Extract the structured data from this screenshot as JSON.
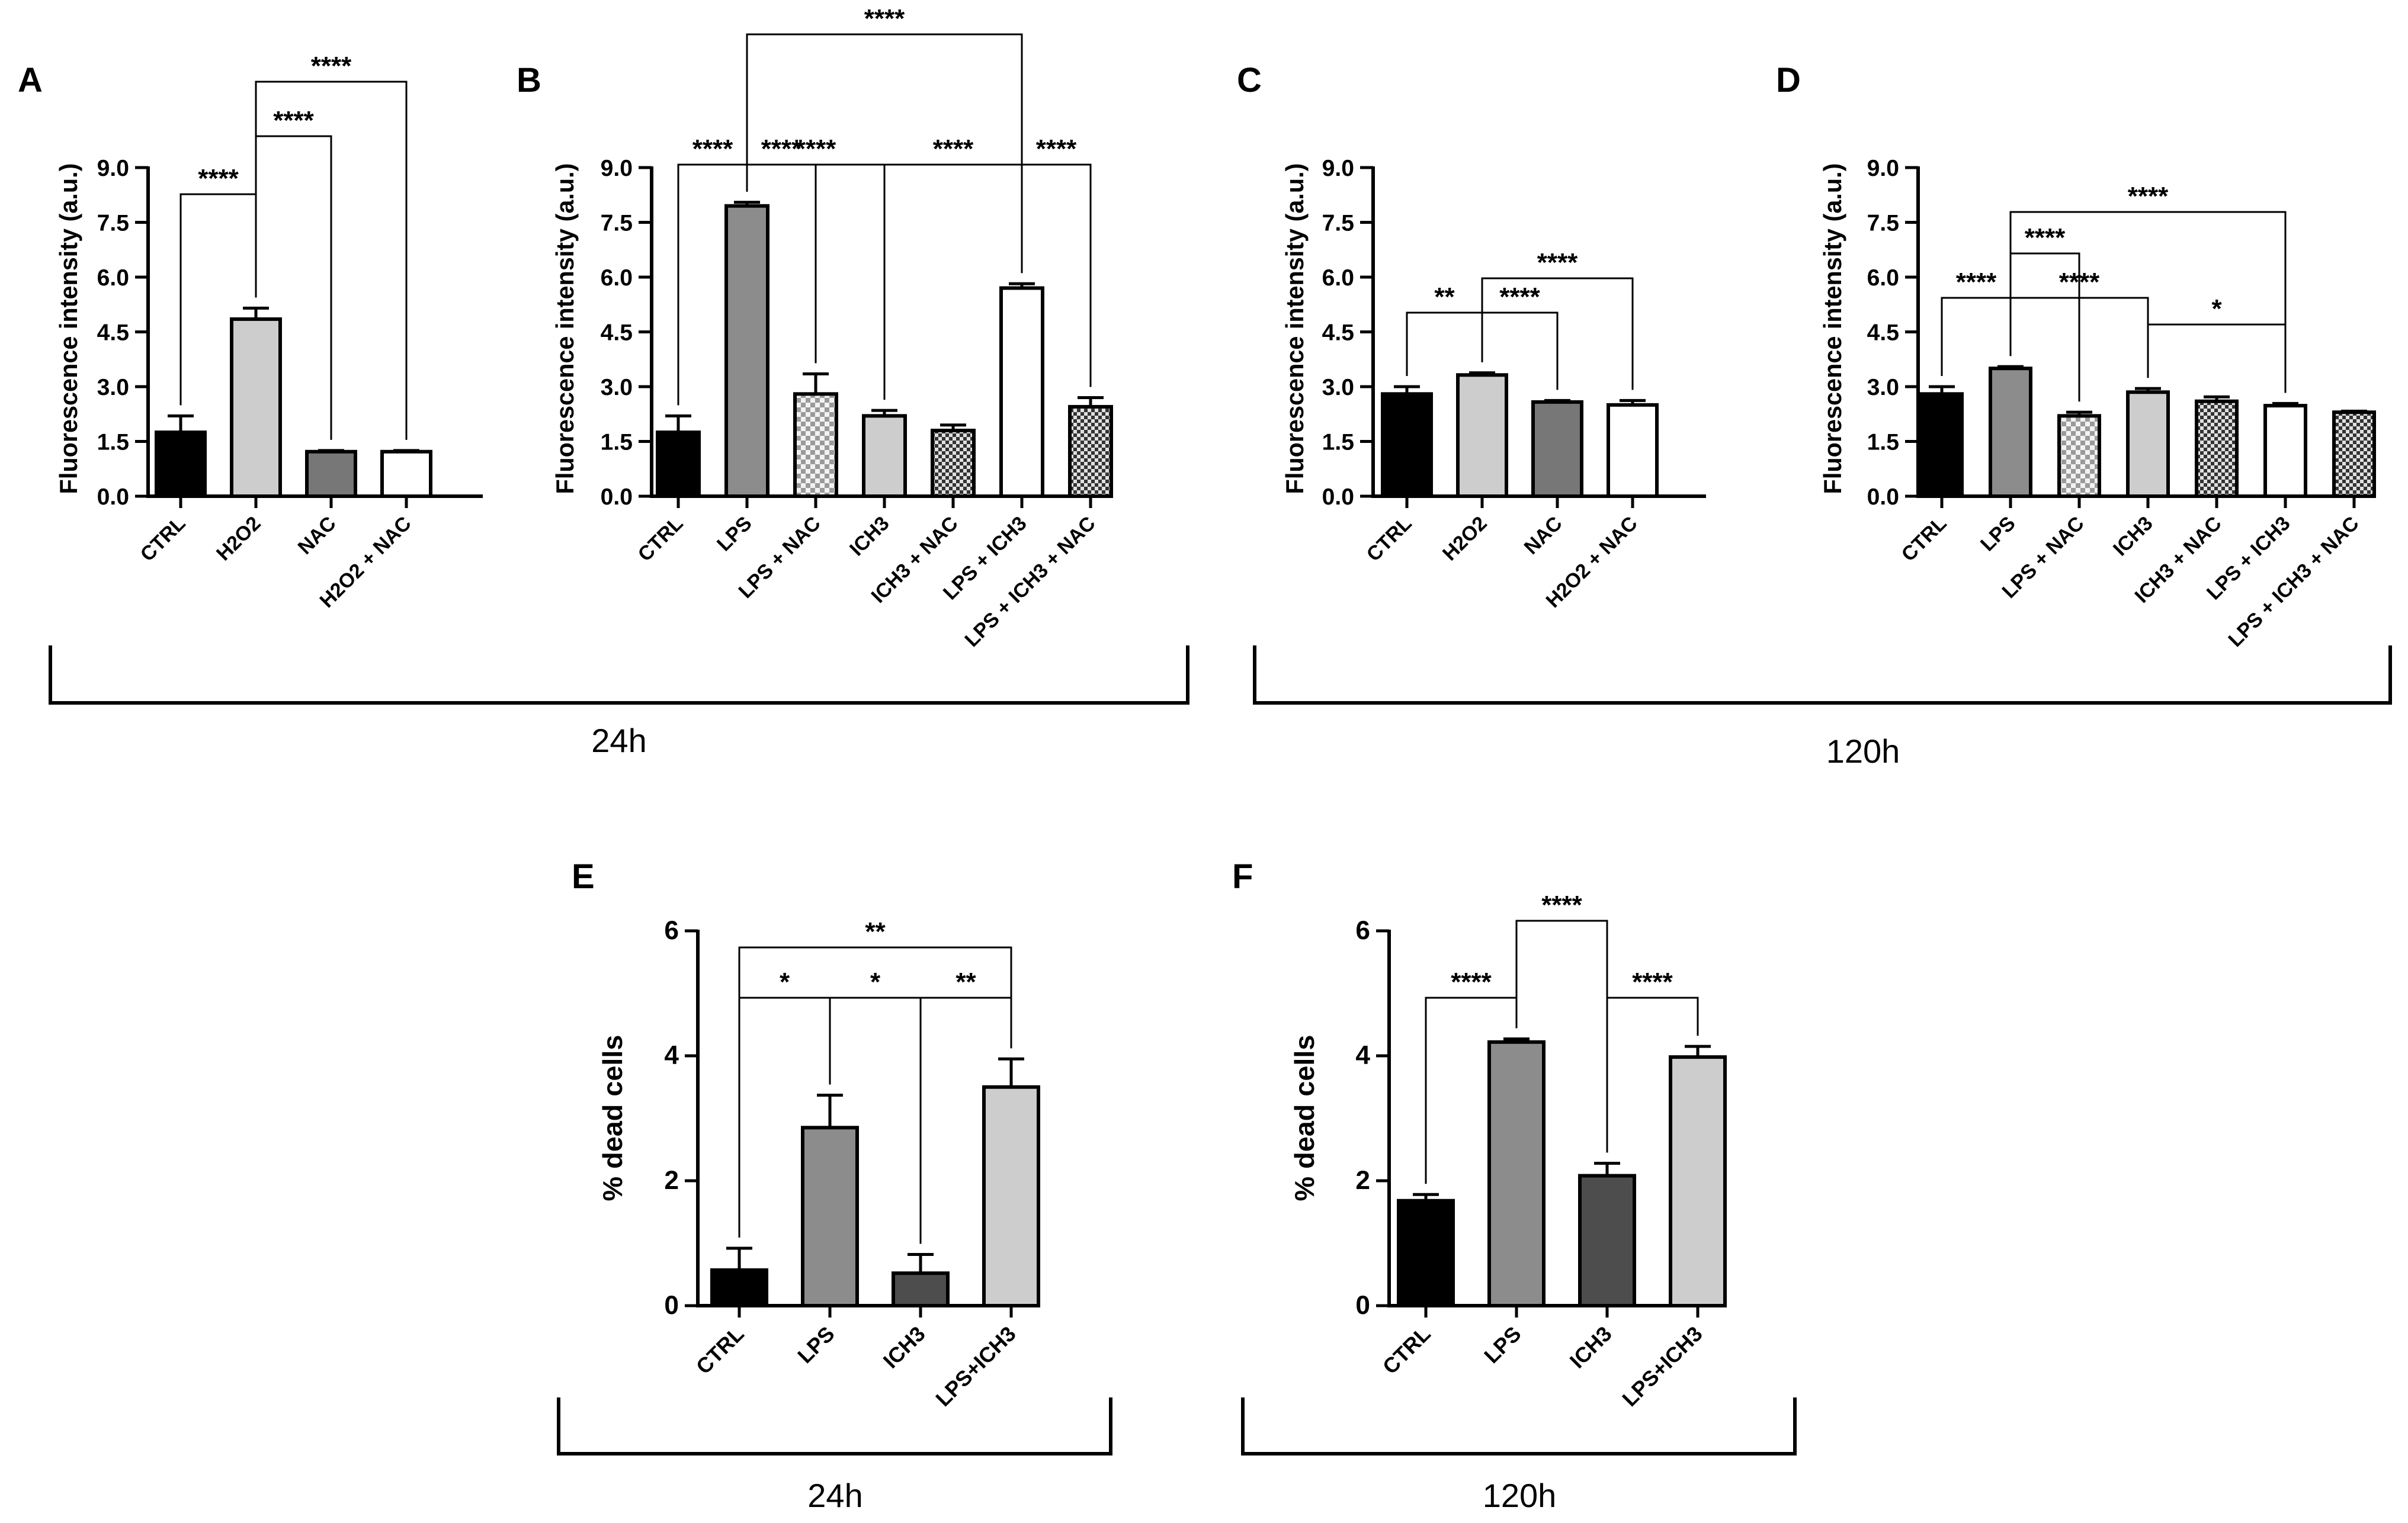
{
  "figure": {
    "groups": [
      {
        "label": "24h",
        "panels": [
          "A",
          "B"
        ]
      },
      {
        "label": "120h",
        "panels": [
          "C",
          "D"
        ]
      }
    ]
  },
  "chart_data": [
    {
      "panel": "A",
      "type": "bar",
      "ylabel": "Fluorescence intensity (a.u.)",
      "ylim": [
        0,
        9
      ],
      "yticks": [
        "0.0",
        "1.5",
        "3.0",
        "4.5",
        "6.0",
        "7.5",
        "9.0"
      ],
      "categories": [
        "CTRL",
        "H2O2",
        "NAC",
        "H2O2 + NAC"
      ],
      "values": [
        1.75,
        4.85,
        1.22,
        1.22
      ],
      "errors": [
        0.45,
        0.3,
        0.03,
        0.03
      ],
      "fills": [
        "#000000",
        "#cdcdcd",
        "#777777",
        "#ffffff"
      ],
      "patterns": [
        "",
        "",
        "",
        ""
      ],
      "significance": [
        {
          "from": 0,
          "to": 1,
          "label": "****"
        },
        {
          "from": 1,
          "to": 2,
          "label": "****"
        },
        {
          "from": 1,
          "to": 3,
          "label": "****"
        }
      ]
    },
    {
      "panel": "B",
      "type": "bar",
      "ylabel": "Fluorescence intensity (a.u.)",
      "ylim": [
        0,
        9
      ],
      "yticks": [
        "0.0",
        "1.5",
        "3.0",
        "4.5",
        "6.0",
        "7.5",
        "9.0"
      ],
      "categories": [
        "CTRL",
        "LPS",
        "LPS + NAC",
        "ICH3",
        "ICH3 + NAC",
        "LPS + ICH3",
        "LPS + ICH3 + NAC"
      ],
      "values": [
        1.75,
        7.95,
        2.8,
        2.2,
        1.8,
        5.7,
        2.45
      ],
      "errors": [
        0.45,
        0.1,
        0.55,
        0.15,
        0.15,
        0.12,
        0.25
      ],
      "fills": [
        "#000000",
        "#8c8c8c",
        "#ffffff",
        "#cdcdcd",
        "#ffffff",
        "#ffffff",
        "#ffffff"
      ],
      "patterns": [
        "",
        "",
        "light-check",
        "",
        "dark-check",
        "",
        "dark-check"
      ],
      "significance": [
        {
          "from": 0,
          "to": 1,
          "label": "****"
        },
        {
          "from": 1,
          "to": 2,
          "label": "****"
        },
        {
          "from": 1,
          "to": 3,
          "label": "****"
        },
        {
          "from": 3,
          "to": 5,
          "label": "****"
        },
        {
          "from": 5,
          "to": 6,
          "label": "****"
        },
        {
          "from": 1,
          "to": 5,
          "label": "****"
        }
      ]
    },
    {
      "panel": "C",
      "type": "bar",
      "ylabel": "Fluorescence intensity (a.u.)",
      "ylim": [
        0,
        9
      ],
      "yticks": [
        "0.0",
        "1.5",
        "3.0",
        "4.5",
        "6.0",
        "7.5",
        "9.0"
      ],
      "categories": [
        "CTRL",
        "H2O2",
        "NAC",
        "H2O2 + NAC"
      ],
      "values": [
        2.8,
        3.32,
        2.58,
        2.5
      ],
      "errors": [
        0.2,
        0.06,
        0.04,
        0.12
      ],
      "fills": [
        "#000000",
        "#cdcdcd",
        "#777777",
        "#ffffff"
      ],
      "patterns": [
        "",
        "",
        "",
        ""
      ],
      "significance": [
        {
          "from": 0,
          "to": 1,
          "label": "**"
        },
        {
          "from": 1,
          "to": 2,
          "label": "****"
        },
        {
          "from": 1,
          "to": 3,
          "label": "****"
        }
      ]
    },
    {
      "panel": "D",
      "type": "bar",
      "ylabel": "Fluorescence intensity (a.u.)",
      "ylim": [
        0,
        9
      ],
      "yticks": [
        "0.0",
        "1.5",
        "3.0",
        "4.5",
        "6.0",
        "7.5",
        "9.0"
      ],
      "categories": [
        "CTRL",
        "LPS",
        "LPS + NAC",
        "ICH3",
        "ICH3 + NAC",
        "LPS + ICH3",
        "LPS + ICH3 + NAC"
      ],
      "values": [
        2.8,
        3.5,
        2.2,
        2.85,
        2.6,
        2.48,
        2.3
      ],
      "errors": [
        0.2,
        0.05,
        0.1,
        0.1,
        0.12,
        0.06,
        0.03
      ],
      "fills": [
        "#000000",
        "#8c8c8c",
        "#ffffff",
        "#cdcdcd",
        "#ffffff",
        "#ffffff",
        "#ffffff"
      ],
      "patterns": [
        "",
        "",
        "light-check",
        "",
        "dark-check",
        "",
        "dark-check"
      ],
      "significance": [
        {
          "from": 0,
          "to": 1,
          "label": "****"
        },
        {
          "from": 1,
          "to": 2,
          "label": "****"
        },
        {
          "from": 1,
          "to": 3,
          "label": "****"
        },
        {
          "from": 3,
          "to": 5,
          "label": "*"
        },
        {
          "from": 1,
          "to": 5,
          "label": "****"
        }
      ]
    },
    {
      "panel": "E",
      "type": "bar",
      "ylabel": "% dead cells",
      "ylim": [
        0,
        6
      ],
      "yticks": [
        "0",
        "2",
        "4",
        "6"
      ],
      "categories": [
        "CTRL",
        "LPS",
        "ICH3",
        "LPS+ICH3"
      ],
      "values": [
        0.57,
        2.85,
        0.52,
        3.5
      ],
      "errors": [
        0.35,
        0.52,
        0.3,
        0.45
      ],
      "fills": [
        "#000000",
        "#8c8c8c",
        "#4d4d4d",
        "#cdcdcd"
      ],
      "patterns": [
        "",
        "",
        "",
        ""
      ],
      "group_label": "24h",
      "significance": [
        {
          "from": 0,
          "to": 1,
          "label": "*"
        },
        {
          "from": 1,
          "to": 2,
          "label": "*"
        },
        {
          "from": 2,
          "to": 3,
          "label": "**"
        },
        {
          "from": 0,
          "to": 3,
          "label": "**"
        }
      ]
    },
    {
      "panel": "F",
      "type": "bar",
      "ylabel": "% dead cells",
      "ylim": [
        0,
        6
      ],
      "yticks": [
        "0",
        "2",
        "4",
        "6"
      ],
      "categories": [
        "CTRL",
        "LPS",
        "ICH3",
        "LPS+ICH3"
      ],
      "values": [
        1.68,
        4.22,
        2.08,
        3.98
      ],
      "errors": [
        0.1,
        0.05,
        0.2,
        0.17
      ],
      "fills": [
        "#000000",
        "#8c8c8c",
        "#4d4d4d",
        "#cdcdcd"
      ],
      "patterns": [
        "",
        "",
        "",
        ""
      ],
      "group_label": "120h",
      "significance": [
        {
          "from": 0,
          "to": 1,
          "label": "****"
        },
        {
          "from": 1,
          "to": 2,
          "label": "****"
        },
        {
          "from": 2,
          "to": 3,
          "label": "****"
        }
      ]
    }
  ]
}
